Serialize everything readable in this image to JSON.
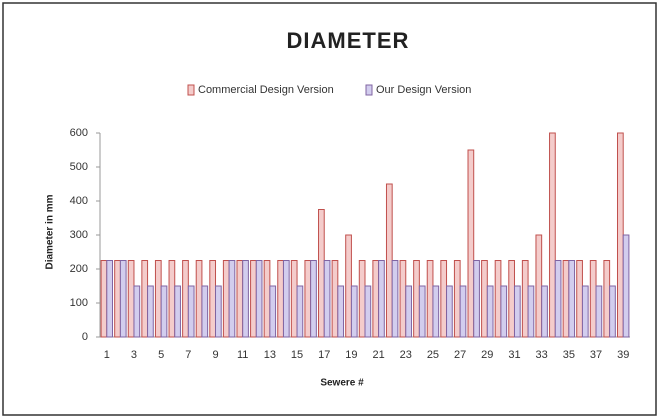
{
  "chart_data": {
    "type": "bar",
    "title": "DIAMETER",
    "xlabel": "Sewere #",
    "ylabel": "Diameter in mm",
    "categories": [
      "1",
      null,
      "3",
      null,
      "5",
      null,
      "7",
      null,
      "9",
      null,
      "11",
      null,
      "13",
      null,
      "15",
      null,
      "17",
      null,
      "19",
      null,
      "21",
      null,
      "23",
      null,
      "25",
      null,
      "27",
      null,
      "29",
      null,
      "31",
      null,
      "33",
      null,
      "35",
      null,
      "37",
      null,
      "39"
    ],
    "series": [
      {
        "name": "Commercial Design Version",
        "color": "#c0504d",
        "values": [
          225,
          225,
          225,
          225,
          225,
          225,
          225,
          225,
          225,
          225,
          225,
          225,
          225,
          225,
          225,
          225,
          375,
          225,
          300,
          225,
          225,
          450,
          225,
          225,
          225,
          225,
          225,
          550,
          225,
          225,
          225,
          225,
          300,
          600,
          225,
          225,
          225,
          225,
          600
        ]
      },
      {
        "name": "Our Design Version",
        "color": "#8064a2",
        "values": [
          225,
          225,
          150,
          150,
          150,
          150,
          150,
          150,
          150,
          225,
          225,
          225,
          150,
          225,
          150,
          225,
          225,
          150,
          150,
          150,
          225,
          225,
          150,
          150,
          150,
          150,
          150,
          225,
          150,
          150,
          150,
          150,
          150,
          225,
          225,
          150,
          150,
          150,
          300
        ]
      }
    ],
    "ylim": [
      0,
      600
    ],
    "yticks": [
      0,
      100,
      200,
      300,
      400,
      500,
      600
    ],
    "grid": false,
    "legend": "top"
  }
}
